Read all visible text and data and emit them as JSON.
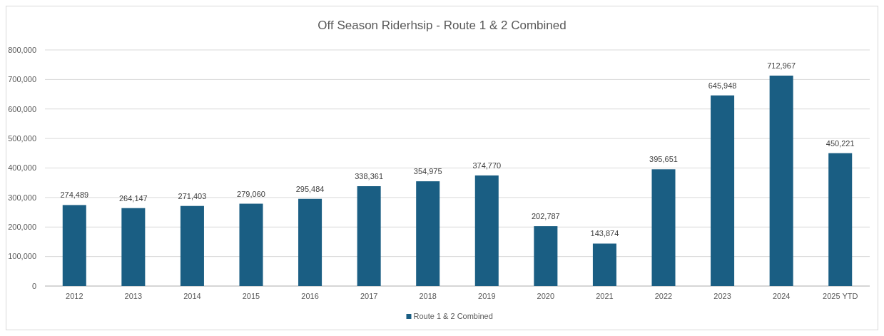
{
  "chart_data": {
    "type": "bar",
    "title": "Off Season Riderhsip - Route 1 & 2 Combined",
    "categories": [
      "2012",
      "2013",
      "2014",
      "2015",
      "2016",
      "2017",
      "2018",
      "2019",
      "2020",
      "2021",
      "2022",
      "2023",
      "2024",
      "2025 YTD"
    ],
    "series": [
      {
        "name": "Route 1 & 2 Combined",
        "color": "#1a5e83",
        "values": [
          274489,
          264147,
          271403,
          279060,
          295484,
          338361,
          354975,
          374770,
          202787,
          143874,
          395651,
          645948,
          712967,
          450221
        ],
        "value_labels": [
          "274,489",
          "264,147",
          "271,403",
          "279,060",
          "295,484",
          "338,361",
          "354,975",
          "374,770",
          "202,787",
          "143,874",
          "395,651",
          "645,948",
          "712,967",
          "450,221"
        ]
      }
    ],
    "ylim": [
      0,
      800000
    ],
    "yticks": [
      {
        "value": 0,
        "label": "0"
      },
      {
        "value": 100000,
        "label": "100,000"
      },
      {
        "value": 200000,
        "label": "200,000"
      },
      {
        "value": 300000,
        "label": "300,000"
      },
      {
        "value": 400000,
        "label": "400,000"
      },
      {
        "value": 500000,
        "label": "500,000"
      },
      {
        "value": 600000,
        "label": "600,000"
      },
      {
        "value": 700000,
        "label": "700,000"
      },
      {
        "value": 800000,
        "label": "800,000"
      }
    ],
    "grid": "y",
    "legend": "bottom"
  }
}
